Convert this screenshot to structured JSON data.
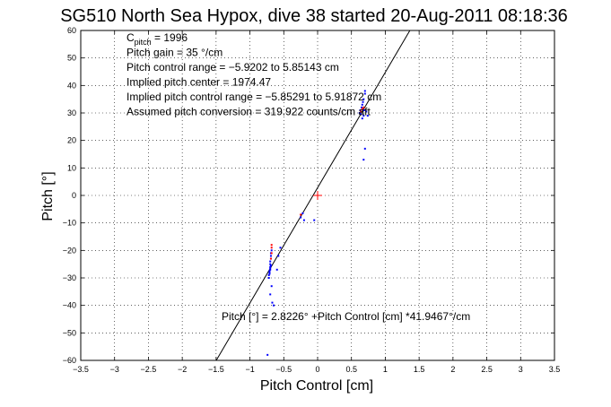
{
  "chart_data": {
    "type": "scatter",
    "title": "SG510 North Sea Hypox, dive 38 started 20-Aug-2011 08:18:36",
    "xlabel": "Pitch Control [cm]",
    "ylabel": "Pitch [°]",
    "xlim": [
      -3.5,
      3.5
    ],
    "ylim": [
      -60,
      60
    ],
    "xticks": [
      -3.5,
      -3,
      -2.5,
      -2,
      -1.5,
      -1,
      -0.5,
      0,
      0.5,
      1,
      1.5,
      2,
      2.5,
      3,
      3.5
    ],
    "yticks": [
      -60,
      -50,
      -40,
      -30,
      -20,
      -10,
      0,
      10,
      20,
      30,
      40,
      50,
      60
    ],
    "xtick_labels": [
      "−3.5",
      "−3",
      "−2.5",
      "−2",
      "−1.5",
      "−1",
      "−0.5",
      "0",
      "0.5",
      "1",
      "1.5",
      "2",
      "2.5",
      "3",
      "3.5"
    ],
    "ytick_labels": [
      "−60",
      "−50",
      "−40",
      "−30",
      "−20",
      "−10",
      "0",
      "10",
      "20",
      "30",
      "40",
      "50",
      "60"
    ],
    "grid": true,
    "colors": {
      "dive_points": "#0000ff",
      "climb_points": "#ff0000",
      "center_marker": "#ff0000",
      "fit_line": "#000000"
    },
    "annotations": [
      {
        "label": "C",
        "sub": "pitch",
        "value": " = 1996"
      },
      {
        "text": "Pitch gain = 35 °/cm"
      },
      {
        "text": "Pitch control range = −5.9202 to 5.85143 cm"
      },
      {
        "text": "Implied pitch center = 1974.47"
      },
      {
        "text": "Implied pitch control range = −5.85291 to 5.91872 cm"
      },
      {
        "text": "Assumed pitch conversion = 319.922 counts/cm aft"
      }
    ],
    "fit_label": "Pitch [°] = 2.8226° +Pitch Control [cm] *41.9467°/cm",
    "fit": {
      "intercept": 2.8226,
      "slope": 41.9467
    },
    "center_marker": {
      "x": 0,
      "y": 0
    },
    "series": [
      {
        "color": "blue",
        "points": [
          [
            -0.72,
            -30
          ],
          [
            -0.72,
            -29
          ],
          [
            -0.71,
            -28
          ],
          [
            -0.71,
            -27.5
          ],
          [
            -0.7,
            -27
          ],
          [
            -0.7,
            -26
          ],
          [
            -0.7,
            -25
          ],
          [
            -0.7,
            -24
          ],
          [
            -0.69,
            -23
          ],
          [
            -0.69,
            -22
          ],
          [
            -0.69,
            -21
          ],
          [
            -0.68,
            -20
          ],
          [
            -0.7,
            -26.5
          ],
          [
            -0.71,
            -28.5
          ],
          [
            -0.69,
            -25.5
          ],
          [
            -0.68,
            -33
          ],
          [
            -0.7,
            -36
          ],
          [
            -0.67,
            -39
          ],
          [
            -0.65,
            -40
          ],
          [
            -0.74,
            -58
          ],
          [
            -0.6,
            -27
          ],
          [
            -0.58,
            -22
          ],
          [
            -0.55,
            -19
          ],
          [
            -0.25,
            -8
          ],
          [
            -0.22,
            -6.5
          ],
          [
            -0.2,
            -9
          ],
          [
            -0.05,
            -9
          ],
          [
            0.62,
            30
          ],
          [
            0.63,
            31
          ],
          [
            0.64,
            29.5
          ],
          [
            0.65,
            32
          ],
          [
            0.66,
            33
          ],
          [
            0.67,
            34
          ],
          [
            0.68,
            35
          ],
          [
            0.69,
            31
          ],
          [
            0.7,
            37
          ],
          [
            0.7,
            38
          ],
          [
            0.66,
            28
          ],
          [
            0.68,
            29
          ],
          [
            0.7,
            17
          ],
          [
            0.68,
            13
          ],
          [
            0.72,
            30.5
          ],
          [
            0.74,
            29
          ]
        ]
      },
      {
        "color": "red",
        "points": [
          [
            -0.68,
            -18
          ],
          [
            -0.68,
            -19
          ],
          [
            -0.68,
            -21
          ],
          [
            -0.69,
            -23
          ],
          [
            -0.25,
            -7
          ],
          [
            0.64,
            30.5
          ],
          [
            0.66,
            31.5
          ],
          [
            0.68,
            32
          ]
        ]
      }
    ]
  }
}
